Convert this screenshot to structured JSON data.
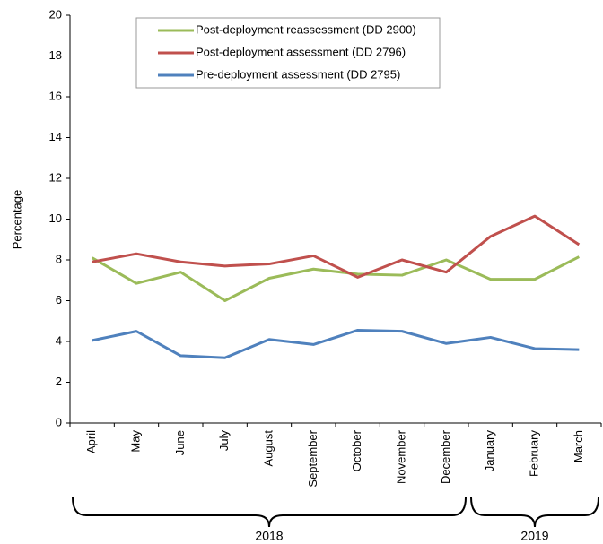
{
  "chart_data": {
    "type": "line",
    "y_label": "Percentage",
    "categories": [
      "April",
      "May",
      "June",
      "July",
      "August",
      "September",
      "October",
      "November",
      "December",
      "January",
      "February",
      "March"
    ],
    "x_groups": [
      {
        "label": "2018",
        "categories": [
          "April",
          "May",
          "June",
          "July",
          "August",
          "September",
          "October",
          "November",
          "December"
        ]
      },
      {
        "label": "2019",
        "categories": [
          "January",
          "February",
          "March"
        ]
      }
    ],
    "series": [
      {
        "name": "Post-deployment reassessment (DD 2900)",
        "color": "#9bbb59",
        "values": [
          8.1,
          6.85,
          7.4,
          6.0,
          7.1,
          7.55,
          7.3,
          7.25,
          8.0,
          7.05,
          7.05,
          8.15
        ]
      },
      {
        "name": "Post-deployment assessment (DD 2796)",
        "color": "#c0504d",
        "values": [
          7.9,
          8.3,
          7.9,
          7.7,
          7.8,
          8.2,
          7.15,
          8.0,
          7.4,
          9.15,
          10.15,
          8.75
        ]
      },
      {
        "name": "Pre-deployment assessment (DD 2795)",
        "color": "#4f81bd",
        "values": [
          4.05,
          4.5,
          3.3,
          3.2,
          4.1,
          3.85,
          4.55,
          4.5,
          3.9,
          4.2,
          3.65,
          3.6
        ]
      }
    ],
    "ylim": [
      0,
      20
    ],
    "yticks": [
      0,
      2,
      4,
      6,
      8,
      10,
      12,
      14,
      16,
      18,
      20
    ],
    "legend": "top"
  }
}
